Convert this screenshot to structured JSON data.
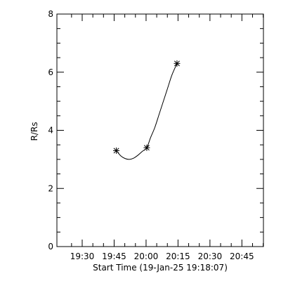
{
  "chart_data": {
    "type": "line",
    "xlabel": "Start Time (19-Jan-25 19:18:07)",
    "ylabel": "R/Rs",
    "x_tick_labels": [
      "19:30",
      "19:45",
      "20:00",
      "20:15",
      "20:30",
      "20:45"
    ],
    "x_ticks_minutes_after_start": [
      11.88,
      26.88,
      41.88,
      56.88,
      71.88,
      86.88
    ],
    "xlim_minutes_after_start": [
      0,
      97
    ],
    "ylim": [
      0,
      8
    ],
    "y_ticks": [
      0,
      2,
      4,
      6,
      8
    ],
    "measurements": {
      "name": "",
      "marker": "asterisk",
      "times": [
        "19:46",
        "20:00",
        "20:14"
      ],
      "x": [
        27.9,
        42.2,
        56.4
      ],
      "y": [
        3.3,
        3.4,
        6.3
      ]
    },
    "fit_curve": {
      "name": "",
      "style": "solid",
      "x": [
        27.9,
        30.0,
        32.0,
        34.0,
        36.0,
        38.0,
        40.0,
        42.2,
        44.0,
        46.0,
        48.0,
        50.0,
        52.0,
        54.0,
        56.4
      ],
      "y": [
        3.3,
        3.12,
        3.03,
        3.0,
        3.04,
        3.14,
        3.27,
        3.4,
        3.75,
        4.1,
        4.55,
        5.0,
        5.45,
        5.9,
        6.3
      ]
    },
    "grid": false,
    "legend": "none"
  }
}
